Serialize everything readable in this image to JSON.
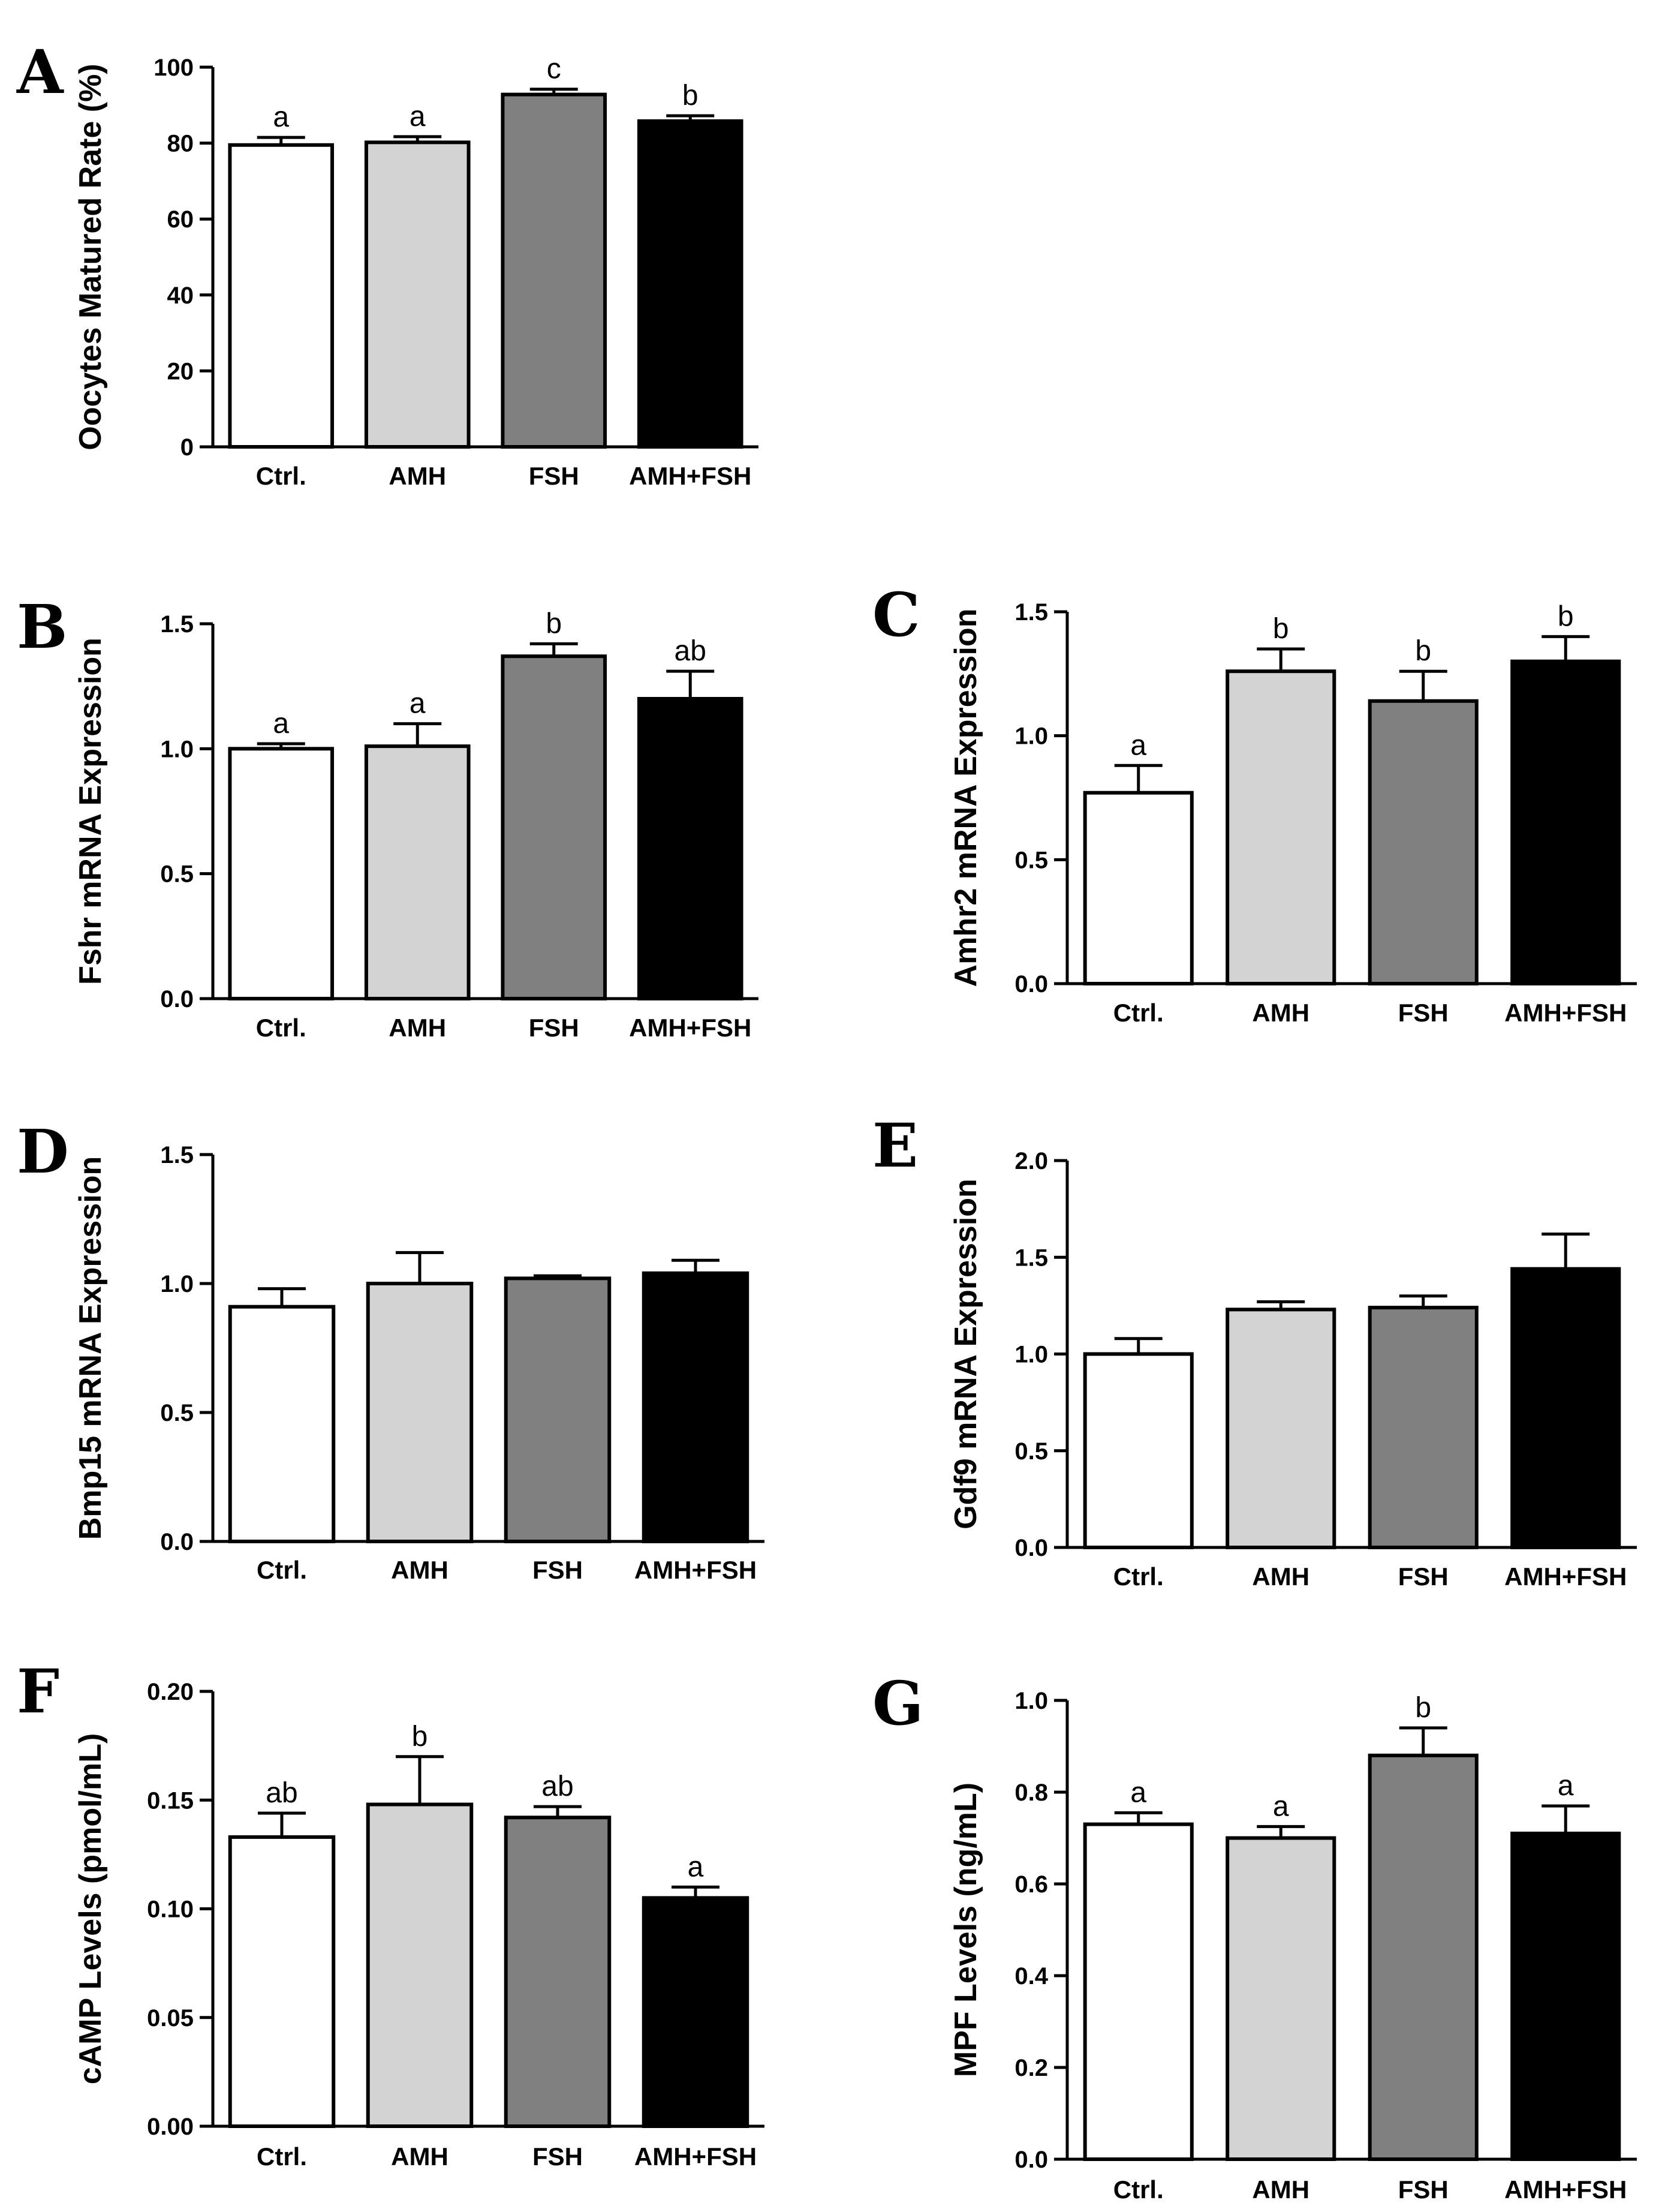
{
  "chart_data": [
    {
      "panel": "A",
      "type": "bar",
      "ylabel": "Oocytes Matured Rate (%)",
      "xlabel": "",
      "categories": [
        "Ctrl.",
        "AMH",
        "FSH",
        "AMH+FSH"
      ],
      "values": [
        79.5,
        80.2,
        92.8,
        85.8
      ],
      "errors": [
        2.0,
        1.5,
        1.4,
        1.4
      ],
      "significance": [
        "a",
        "a",
        "c",
        "b"
      ],
      "ylim": [
        0,
        100
      ],
      "yticks": [
        "0",
        "20",
        "40",
        "60",
        "80",
        "100"
      ],
      "bar_colors": [
        "#ffffff",
        "#d3d3d3",
        "#808080",
        "#000000"
      ]
    },
    {
      "panel": "B",
      "type": "bar",
      "ylabel": "Fshr mRNA Expression",
      "xlabel": "",
      "categories": [
        "Ctrl.",
        "AMH",
        "FSH",
        "AMH+FSH"
      ],
      "values": [
        1.0,
        1.01,
        1.37,
        1.2
      ],
      "errors": [
        0.02,
        0.09,
        0.05,
        0.11
      ],
      "significance": [
        "a",
        "a",
        "b",
        "ab"
      ],
      "ylim": [
        0,
        1.5
      ],
      "yticks": [
        "0.0",
        "0.5",
        "1.0",
        "1.5"
      ],
      "bar_colors": [
        "#ffffff",
        "#d3d3d3",
        "#808080",
        "#000000"
      ]
    },
    {
      "panel": "C",
      "type": "bar",
      "ylabel": "Amhr2 mRNA Expression",
      "xlabel": "",
      "categories": [
        "Ctrl.",
        "AMH",
        "FSH",
        "AMH+FSH"
      ],
      "values": [
        0.77,
        1.26,
        1.14,
        1.3
      ],
      "errors": [
        0.11,
        0.09,
        0.12,
        0.1
      ],
      "significance": [
        "a",
        "b",
        "b",
        "b"
      ],
      "ylim": [
        0,
        1.5
      ],
      "yticks": [
        "0.0",
        "0.5",
        "1.0",
        "1.5"
      ],
      "bar_colors": [
        "#ffffff",
        "#d3d3d3",
        "#808080",
        "#000000"
      ]
    },
    {
      "panel": "D",
      "type": "bar",
      "ylabel": "Bmp15 mRNA Expression",
      "xlabel": "",
      "categories": [
        "Ctrl.",
        "AMH",
        "FSH",
        "AMH+FSH"
      ],
      "values": [
        0.91,
        1.0,
        1.02,
        1.04
      ],
      "errors": [
        0.07,
        0.12,
        0.01,
        0.05
      ],
      "significance": [
        "",
        "",
        "",
        ""
      ],
      "ylim": [
        0,
        1.5
      ],
      "yticks": [
        "0.0",
        "0.5",
        "1.0",
        "1.5"
      ],
      "bar_colors": [
        "#ffffff",
        "#d3d3d3",
        "#808080",
        "#000000"
      ]
    },
    {
      "panel": "E",
      "type": "bar",
      "ylabel": "Gdf9 mRNA Expression",
      "xlabel": "",
      "categories": [
        "Ctrl.",
        "AMH",
        "FSH",
        "AMH+FSH"
      ],
      "values": [
        1.0,
        1.23,
        1.24,
        1.44
      ],
      "errors": [
        0.08,
        0.04,
        0.06,
        0.18
      ],
      "significance": [
        "",
        "",
        "",
        ""
      ],
      "ylim": [
        0,
        2.0
      ],
      "yticks": [
        "0.0",
        "0.5",
        "1.0",
        "1.5",
        "2.0"
      ],
      "bar_colors": [
        "#ffffff",
        "#d3d3d3",
        "#808080",
        "#000000"
      ]
    },
    {
      "panel": "F",
      "type": "bar",
      "ylabel": "cAMP Levels (pmol/mL)",
      "xlabel": "",
      "categories": [
        "Ctrl.",
        "AMH",
        "FSH",
        "AMH+FSH"
      ],
      "values": [
        0.133,
        0.148,
        0.142,
        0.105
      ],
      "errors": [
        0.011,
        0.022,
        0.005,
        0.005
      ],
      "significance": [
        "ab",
        "b",
        "ab",
        "a"
      ],
      "ylim": [
        0,
        0.2
      ],
      "yticks": [
        "0.00",
        "0.05",
        "0.10",
        "0.15",
        "0.20"
      ],
      "bar_colors": [
        "#ffffff",
        "#d3d3d3",
        "#808080",
        "#000000"
      ]
    },
    {
      "panel": "G",
      "type": "bar",
      "ylabel": "MPF Levels (ng/mL)",
      "xlabel": "",
      "categories": [
        "Ctrl.",
        "AMH",
        "FSH",
        "AMH+FSH"
      ],
      "values": [
        0.73,
        0.7,
        0.88,
        0.71
      ],
      "errors": [
        0.025,
        0.025,
        0.06,
        0.06
      ],
      "significance": [
        "a",
        "a",
        "b",
        "a"
      ],
      "ylim": [
        0,
        1.0
      ],
      "yticks": [
        "0.0",
        "0.2",
        "0.4",
        "0.6",
        "0.8",
        "1.0"
      ],
      "bar_colors": [
        "#ffffff",
        "#d3d3d3",
        "#808080",
        "#000000"
      ]
    }
  ]
}
